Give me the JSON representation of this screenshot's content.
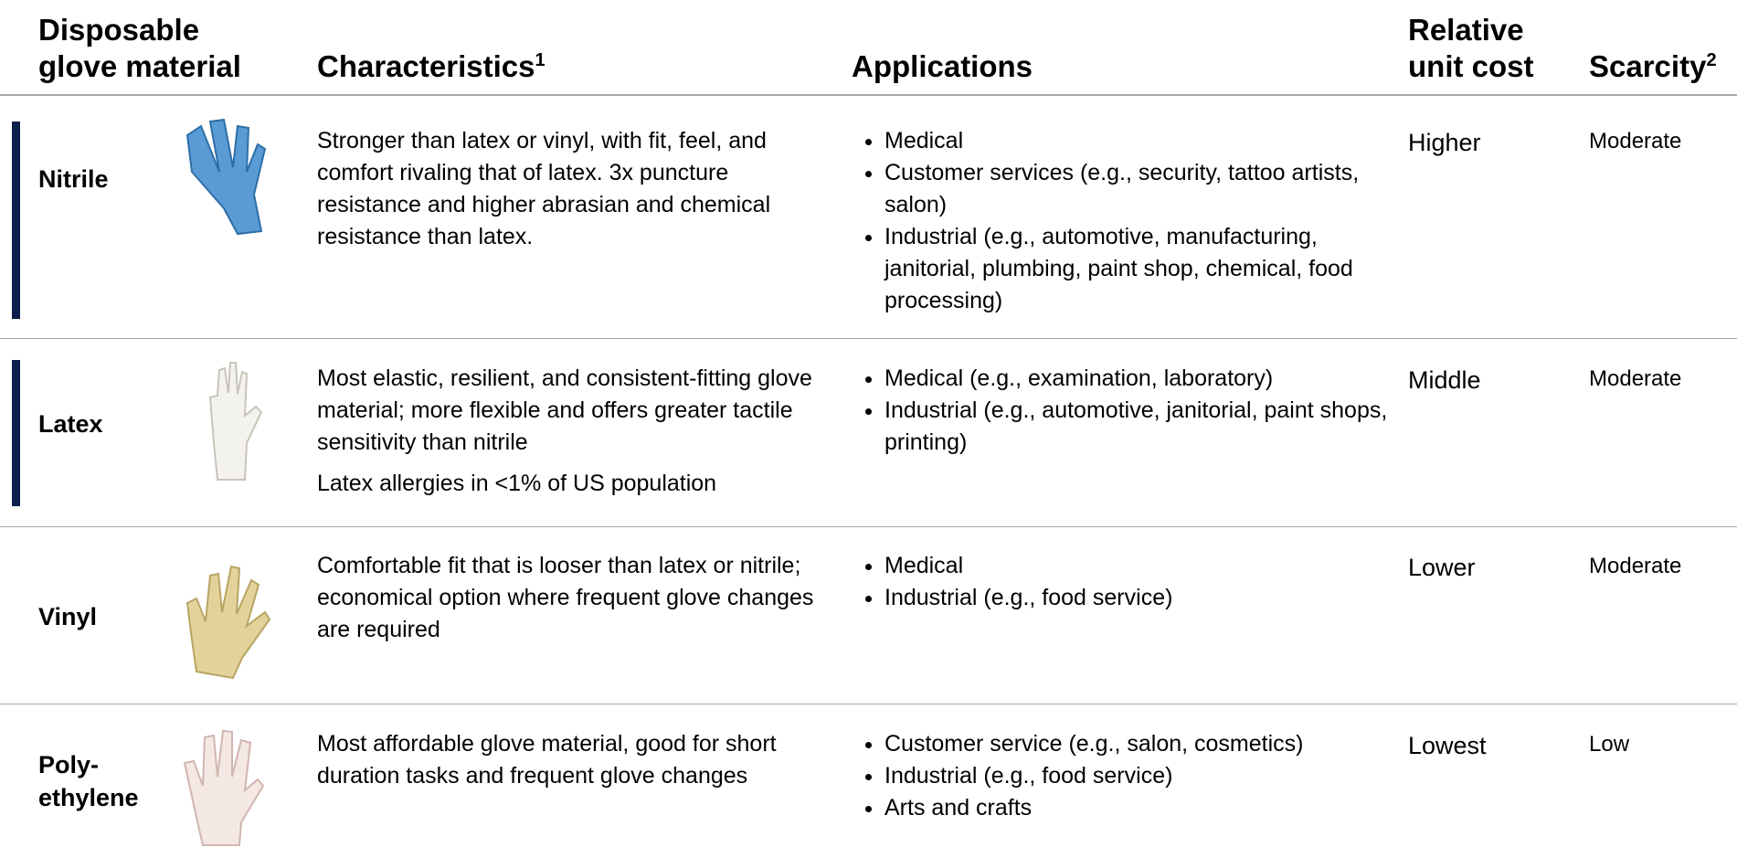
{
  "table": {
    "headers": [
      {
        "lines": [
          "Disposable",
          "glove material"
        ]
      },
      {
        "lines": [
          "Characteristics"
        ],
        "sup": "1"
      },
      {
        "lines": [
          "Applications"
        ]
      },
      {
        "lines": [
          "Relative",
          "unit cost"
        ]
      },
      {
        "lines": [
          "Scarcity"
        ],
        "sup": "2"
      }
    ],
    "rows": [
      {
        "name": [
          "Nitrile"
        ],
        "characteristics": [
          "Stronger than latex or vinyl, with fit, feel, and comfort rivaling that of latex. 3x puncture resistance and higher abrasian and chemical resistance than latex."
        ],
        "applications": [
          "Medical",
          "Customer services (e.g., security, tattoo artists, salon)",
          "Industrial (e.g., automotive, manufacturing, janitorial, plumbing, paint shop, chemical, food processing)"
        ],
        "cost": "Higher",
        "scarcity": "Moderate"
      },
      {
        "name": [
          "Latex"
        ],
        "characteristics": [
          "Most elastic, resilient, and consistent-fitting glove material; more flexible and offers greater tactile sensitivity than nitrile",
          "Latex allergies in <1% of US population"
        ],
        "applications": [
          "Medical (e.g., examination, laboratory)",
          "Industrial (e.g., automotive, janitorial, paint shops, printing)"
        ],
        "cost": "Middle",
        "scarcity": "Moderate"
      },
      {
        "name": [
          "Vinyl"
        ],
        "characteristics": [
          "Comfortable fit that is looser than latex or nitrile; economical option where frequent glove changes are required"
        ],
        "applications": [
          "Medical",
          "Industrial (e.g., food service)"
        ],
        "cost": "Lower",
        "scarcity": "Moderate"
      },
      {
        "name": [
          "Poly-",
          "ethylene"
        ],
        "characteristics": [
          "Most affordable glove material, good for short duration tasks and frequent glove changes"
        ],
        "applications": [
          "Customer service (e.g., salon, cosmetics)",
          "Industrial (e.g., food service)",
          "Arts and crafts"
        ],
        "cost": "Lowest",
        "scarcity": "Low"
      }
    ]
  }
}
